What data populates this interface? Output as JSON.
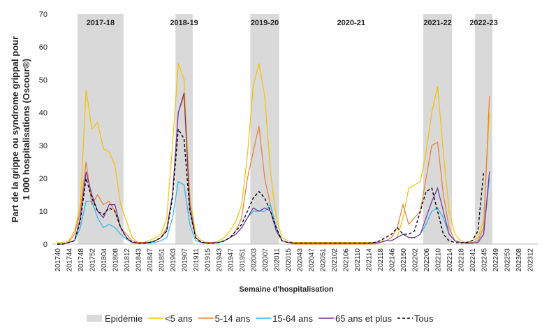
{
  "chart_data": {
    "type": "line",
    "y_label_lines": [
      "Part de la grippe ou syndrome grippal pour",
      "1 000 hospitalisations (Oscour®)"
    ],
    "x_label": "Semaine d'hospitalisation",
    "categories": [
      "201740",
      null,
      "201744",
      null,
      "201748",
      null,
      "201752",
      null,
      "201804",
      null,
      "201808",
      null,
      "201812",
      null,
      "201843",
      null,
      "201847",
      null,
      "201851",
      null,
      "201903",
      null,
      "201907",
      null,
      "201911",
      null,
      "201915",
      null,
      "201943",
      null,
      "201947",
      null,
      "201951",
      null,
      "202003",
      null,
      "202007",
      null,
      "202011",
      null,
      "202015",
      null,
      "202043",
      null,
      "202047",
      null,
      "202051",
      null,
      "202102",
      null,
      "202106",
      null,
      "202110",
      null,
      "202114",
      null,
      "202118",
      null,
      "202146",
      null,
      "202150",
      null,
      "202202",
      null,
      "202206",
      null,
      "202210",
      null,
      "202214",
      null,
      "202218",
      null,
      "202241",
      null,
      "202245",
      null,
      "202249",
      null,
      "202253",
      null,
      "202308",
      null,
      "202312",
      null
    ],
    "ylim": [
      0,
      70
    ],
    "yticks": [
      0,
      10,
      20,
      30,
      40,
      50,
      60,
      70
    ],
    "epidemic": {
      "name": "Epidémie",
      "color": "#d9d9d9",
      "seasons": [
        {
          "label": "2017-18",
          "shaded": true,
          "start": 4,
          "end": 11
        },
        {
          "label": "2018-19",
          "shaded": true,
          "start": 21,
          "end": 23
        },
        {
          "label": "2019-20",
          "shaded": true,
          "start": 34,
          "end": 38
        },
        {
          "label": "2020-21",
          "shaded": false,
          "start": 44,
          "end": 58
        },
        {
          "label": "2021-22",
          "shaded": true,
          "start": 64,
          "end": 68
        },
        {
          "label": "2022-23",
          "shaded": true,
          "start": 73,
          "end": 75
        }
      ]
    },
    "series": [
      {
        "name": "<5 ans",
        "color": "#f5c000",
        "dash": false,
        "values": [
          0.5,
          0.5,
          1,
          4,
          12,
          47,
          35,
          37,
          29,
          28,
          24,
          12,
          7,
          2,
          0.5,
          0.5,
          1,
          2,
          3,
          8,
          30,
          55,
          50,
          15,
          3,
          1,
          0.5,
          0.5,
          1,
          2,
          4,
          7,
          12,
          27,
          48,
          55,
          45,
          22,
          8,
          2,
          1,
          0.5,
          0.5,
          0.5,
          0.5,
          0.5,
          0.5,
          0.5,
          0.5,
          0.5,
          0.5,
          0.5,
          0.5,
          0.5,
          0.5,
          0.5,
          1,
          1,
          1,
          2,
          8,
          17,
          18,
          19,
          28,
          40,
          48,
          28,
          10,
          3,
          1,
          0.5,
          1,
          2,
          7,
          40,
          null,
          null,
          null,
          null,
          null,
          null,
          null,
          null
        ]
      },
      {
        "name": "5-14 ans",
        "color": "#ed7d31",
        "dash": false,
        "values": [
          0,
          0,
          0.5,
          3,
          10,
          25,
          12,
          15,
          12,
          13,
          10,
          5,
          3,
          1,
          0.5,
          0.5,
          0.5,
          1,
          2,
          5,
          15,
          40,
          45,
          10,
          2,
          0.5,
          0.5,
          0.5,
          0.5,
          1,
          2,
          4,
          8,
          20,
          28,
          36,
          20,
          12,
          5,
          1,
          0.5,
          0,
          0,
          0,
          0,
          0,
          0,
          0,
          0,
          0,
          0,
          0,
          0,
          0,
          0,
          0,
          0.5,
          1,
          2,
          5,
          12,
          6,
          8,
          10,
          20,
          30,
          31,
          15,
          5,
          1,
          0.5,
          0.5,
          0.5,
          1,
          5,
          45,
          null,
          null,
          null,
          null,
          null,
          null,
          null,
          null
        ]
      },
      {
        "name": "15-64 ans",
        "color": "#2eb4e6",
        "dash": false,
        "values": [
          0,
          0,
          0.5,
          1,
          5,
          13,
          13,
          8,
          5,
          6,
          5,
          3,
          1.5,
          0.5,
          0.2,
          0.2,
          0.3,
          0.5,
          1,
          2,
          8,
          19,
          18,
          6,
          1,
          0.5,
          0.3,
          0.3,
          0.5,
          1,
          2,
          3,
          5,
          8,
          10,
          10,
          10,
          12,
          5,
          1,
          0.5,
          0.3,
          0.3,
          0.3,
          0.3,
          0.3,
          0.3,
          0.3,
          0.3,
          0.3,
          0.3,
          0.3,
          0.3,
          0.3,
          0.3,
          0.3,
          0.5,
          1,
          1,
          2,
          3,
          2,
          2,
          3,
          6,
          10,
          11,
          8,
          3,
          1,
          0.5,
          0.3,
          0.3,
          0.5,
          3,
          20,
          null,
          null,
          null,
          null,
          null,
          null,
          null,
          null
        ]
      },
      {
        "name": "65 ans et plus",
        "color": "#7030a0",
        "dash": false,
        "values": [
          0,
          0,
          0.5,
          1,
          8,
          22,
          15,
          10,
          8,
          12,
          12,
          5,
          2,
          0.5,
          0.3,
          0.3,
          0.5,
          1,
          2,
          4,
          15,
          40,
          46,
          12,
          2,
          0.5,
          0.3,
          0.3,
          0.5,
          1,
          2,
          3,
          5,
          8,
          11,
          10,
          11,
          10,
          4,
          1,
          0.5,
          0.3,
          0.3,
          0.3,
          0.3,
          0.3,
          0.3,
          0.3,
          0.3,
          0.3,
          0.3,
          0.3,
          0.3,
          0.3,
          0.3,
          0.3,
          0.5,
          1,
          1,
          2,
          3,
          2,
          2,
          3,
          8,
          13,
          17,
          10,
          3,
          1,
          0.5,
          0.3,
          0.3,
          0.5,
          3,
          22,
          null,
          null,
          null,
          null,
          null,
          null,
          null,
          null
        ]
      },
      {
        "name": "Tous",
        "color": "#000000",
        "dash": true,
        "values": [
          0,
          0,
          0.5,
          1,
          7,
          20,
          14,
          10,
          9,
          11,
          10,
          5,
          2,
          0.5,
          0.3,
          0.3,
          0.5,
          1,
          2,
          4,
          14,
          35,
          32,
          10,
          2,
          0.5,
          0.3,
          0.3,
          0.5,
          1,
          2,
          4,
          6,
          10,
          14,
          16,
          14,
          10,
          5,
          1,
          0.5,
          0.3,
          0.3,
          0.3,
          0.3,
          0.3,
          0.3,
          0.3,
          0.3,
          0.3,
          0.3,
          0.3,
          0.3,
          0.3,
          0.3,
          0.5,
          1,
          2,
          3,
          5,
          3,
          3,
          4,
          10,
          16,
          17,
          10,
          3,
          1,
          0.5,
          0.3,
          0.5,
          1,
          4,
          22,
          null,
          null,
          null,
          null,
          null,
          null,
          null,
          null,
          null
        ]
      }
    ]
  }
}
